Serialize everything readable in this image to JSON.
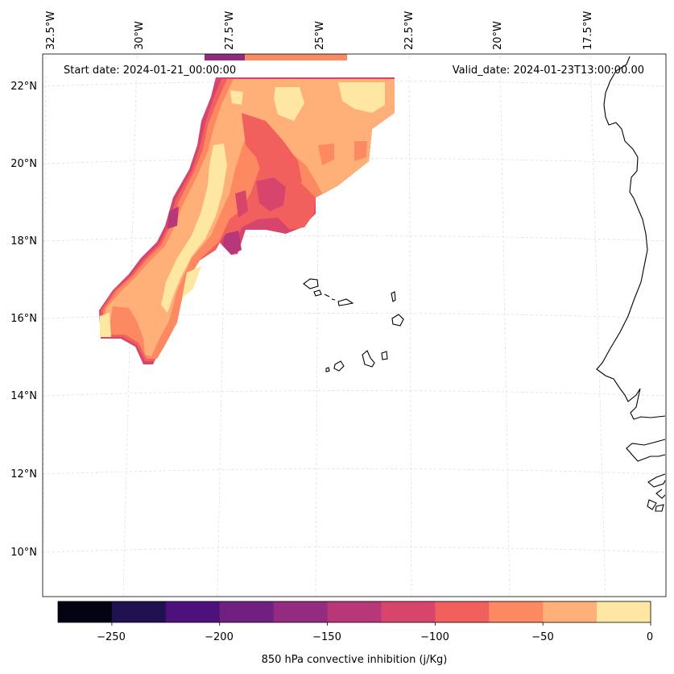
{
  "header": {
    "start_date": "Start date: 2024-01-21_00:00:00",
    "valid_date": "Valid_date: 2024-01-23T13:00:00.00"
  },
  "longitude_labels": [
    "32.5°W",
    "30°W",
    "27.5°W",
    "25°W",
    "22.5°W",
    "20°W",
    "17.5°W"
  ],
  "latitude_labels": [
    "22°N",
    "20°N",
    "18°N",
    "16°N",
    "14°N",
    "12°N",
    "10°N"
  ],
  "colorbar": {
    "label": "850 hPa convective inhibition (j/Kg)",
    "ticks": [
      "−250",
      "−200",
      "−150",
      "−100",
      "−50",
      "0"
    ],
    "levels": [
      -275,
      -250,
      -225,
      -200,
      -175,
      -150,
      -125,
      -100,
      -75,
      -50,
      -25,
      0
    ],
    "colors": [
      "#030312",
      "#221150",
      "#4c117a",
      "#711f81",
      "#932b80",
      "#b73779",
      "#d8456c",
      "#f1605d",
      "#fc8961",
      "#feb078",
      "#fde7a3"
    ]
  },
  "chart_data": {
    "type": "map",
    "title": "",
    "variable": "850 hPa convective inhibition",
    "units": "j/Kg",
    "lon_range": [
      -33,
      -16
    ],
    "lat_range": [
      9,
      23
    ],
    "colorbar_range": [
      -275,
      0
    ],
    "feature": "CIN band from ~15°N 31°W extending NE to ~22.5°N 23°W, values mostly -25 to -125 j/Kg"
  }
}
